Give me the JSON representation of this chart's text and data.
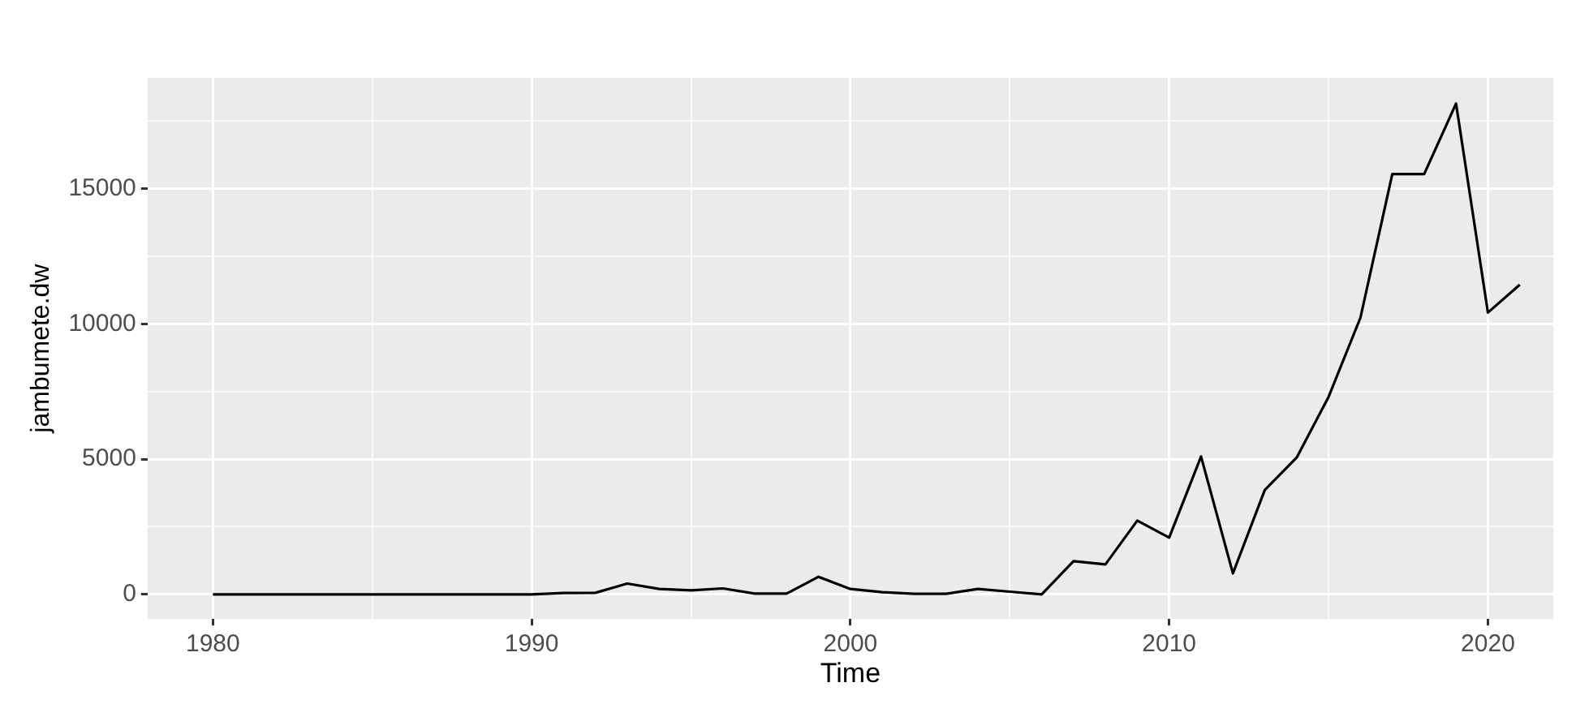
{
  "chart_data": {
    "type": "line",
    "xlabel": "Time",
    "ylabel": "jambumete.dw",
    "x": [
      1980,
      1981,
      1982,
      1983,
      1984,
      1985,
      1986,
      1987,
      1988,
      1989,
      1990,
      1991,
      1992,
      1993,
      1994,
      1995,
      1996,
      1997,
      1998,
      1999,
      2000,
      2001,
      2002,
      2003,
      2004,
      2005,
      2006,
      2007,
      2008,
      2009,
      2010,
      2011,
      2012,
      2013,
      2014,
      2015,
      2016,
      2017,
      2018,
      2019,
      2020,
      2021
    ],
    "series": [
      {
        "color": "#000000",
        "values": [
          0,
          0,
          0,
          0,
          0,
          0,
          0,
          0,
          0,
          0,
          0,
          50,
          60,
          400,
          200,
          150,
          220,
          30,
          30,
          650,
          200,
          80,
          20,
          20,
          200,
          100,
          0,
          1230,
          1110,
          2730,
          2100,
          5100,
          780,
          3860,
          5060,
          7300,
          10230,
          15540,
          15540,
          18150,
          10420,
          11450
        ]
      }
    ],
    "xlim": [
      1977.95,
      2022.05
    ],
    "xticks": [
      1980,
      {
        "value": 1985,
        "label": null
      },
      1990,
      {
        "value": 1995,
        "label": null
      },
      2000,
      {
        "value": 2005,
        "label": null
      },
      2010,
      {
        "value": 2015,
        "label": null
      },
      2020
    ],
    "ylim": [
      -910,
      19100
    ],
    "yticks": [
      0,
      {
        "value": 2500,
        "label": null
      },
      5000,
      {
        "value": 7500,
        "label": null
      },
      10000,
      {
        "value": 12500,
        "label": null
      },
      15000,
      {
        "value": 17500,
        "label": null
      }
    ],
    "grid": true,
    "legend": false,
    "marker": "none",
    "line_style": "solid"
  }
}
